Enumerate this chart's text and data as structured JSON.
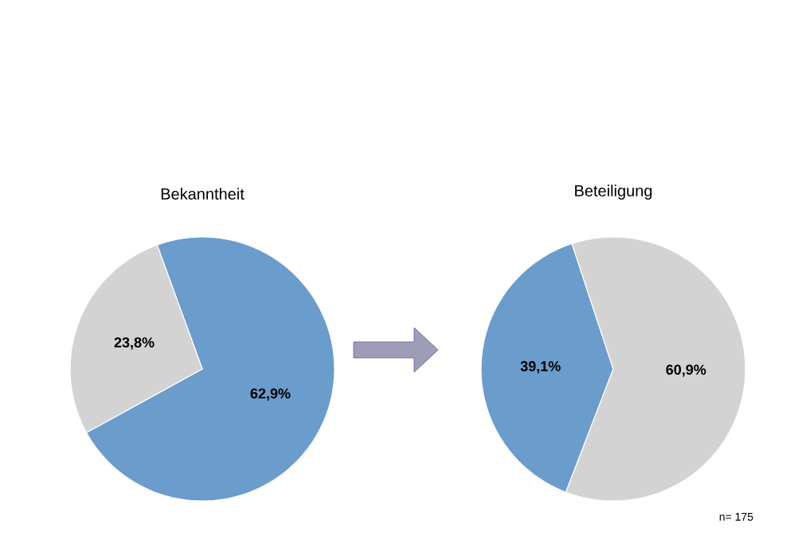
{
  "chart_data": [
    {
      "type": "pie",
      "title": "Bekanntheit",
      "categories": [
        null,
        null
      ],
      "values": [
        62.9,
        23.8
      ],
      "colors": [
        "#6a9ccc",
        "#d3d3d3"
      ],
      "value_labels": [
        "62,9%",
        "23,8%"
      ]
    },
    {
      "type": "pie",
      "title": "Beteiligung",
      "categories": [
        null,
        null
      ],
      "values": [
        39.1,
        60.9
      ],
      "colors": [
        "#6a9ccc",
        "#d3d3d3"
      ],
      "value_labels": [
        "39,1%",
        "60,9%"
      ],
      "annotations": [
        "n= 175"
      ]
    }
  ]
}
